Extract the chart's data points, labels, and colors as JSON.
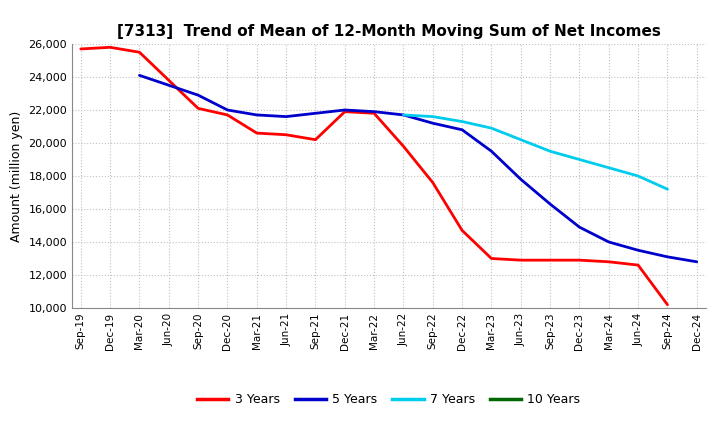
{
  "title": "[7313]  Trend of Mean of 12-Month Moving Sum of Net Incomes",
  "ylabel": "Amount (million yen)",
  "ylim": [
    10000,
    26000
  ],
  "yticks": [
    10000,
    12000,
    14000,
    16000,
    18000,
    20000,
    22000,
    24000,
    26000
  ],
  "background_color": "#ffffff",
  "grid_color": "#bbbbbb",
  "x_labels": [
    "Sep-19",
    "Dec-19",
    "Mar-20",
    "Jun-20",
    "Sep-20",
    "Dec-20",
    "Mar-21",
    "Jun-21",
    "Sep-21",
    "Dec-21",
    "Mar-22",
    "Jun-22",
    "Sep-22",
    "Dec-22",
    "Mar-23",
    "Jun-23",
    "Sep-23",
    "Dec-23",
    "Mar-24",
    "Jun-24",
    "Sep-24",
    "Dec-24"
  ],
  "series": {
    "3 Years": {
      "color": "#ff0000",
      "data": [
        25700,
        25800,
        25500,
        23800,
        22100,
        21700,
        20600,
        20500,
        20200,
        21900,
        21800,
        19800,
        17600,
        14700,
        13000,
        12900,
        12900,
        12900,
        12800,
        12600,
        10200,
        null
      ]
    },
    "5 Years": {
      "color": "#0000cc",
      "data": [
        null,
        null,
        24100,
        23500,
        22900,
        22000,
        21700,
        21600,
        21800,
        22000,
        21900,
        21700,
        21200,
        20800,
        19500,
        17800,
        16300,
        14900,
        14000,
        13500,
        13100,
        12800
      ]
    },
    "7 Years": {
      "color": "#00ccee",
      "data": [
        null,
        null,
        null,
        null,
        null,
        null,
        null,
        null,
        null,
        null,
        null,
        21700,
        21600,
        21300,
        20900,
        20200,
        19500,
        19000,
        18500,
        18000,
        17200,
        null
      ]
    },
    "10 Years": {
      "color": "#006600",
      "data": [
        null,
        null,
        null,
        null,
        null,
        null,
        null,
        null,
        null,
        null,
        null,
        null,
        null,
        null,
        null,
        null,
        null,
        null,
        null,
        null,
        null,
        null
      ]
    }
  },
  "legend": {
    "labels": [
      "3 Years",
      "5 Years",
      "7 Years",
      "10 Years"
    ],
    "colors": [
      "#ff0000",
      "#0000cc",
      "#00ccee",
      "#006600"
    ]
  }
}
